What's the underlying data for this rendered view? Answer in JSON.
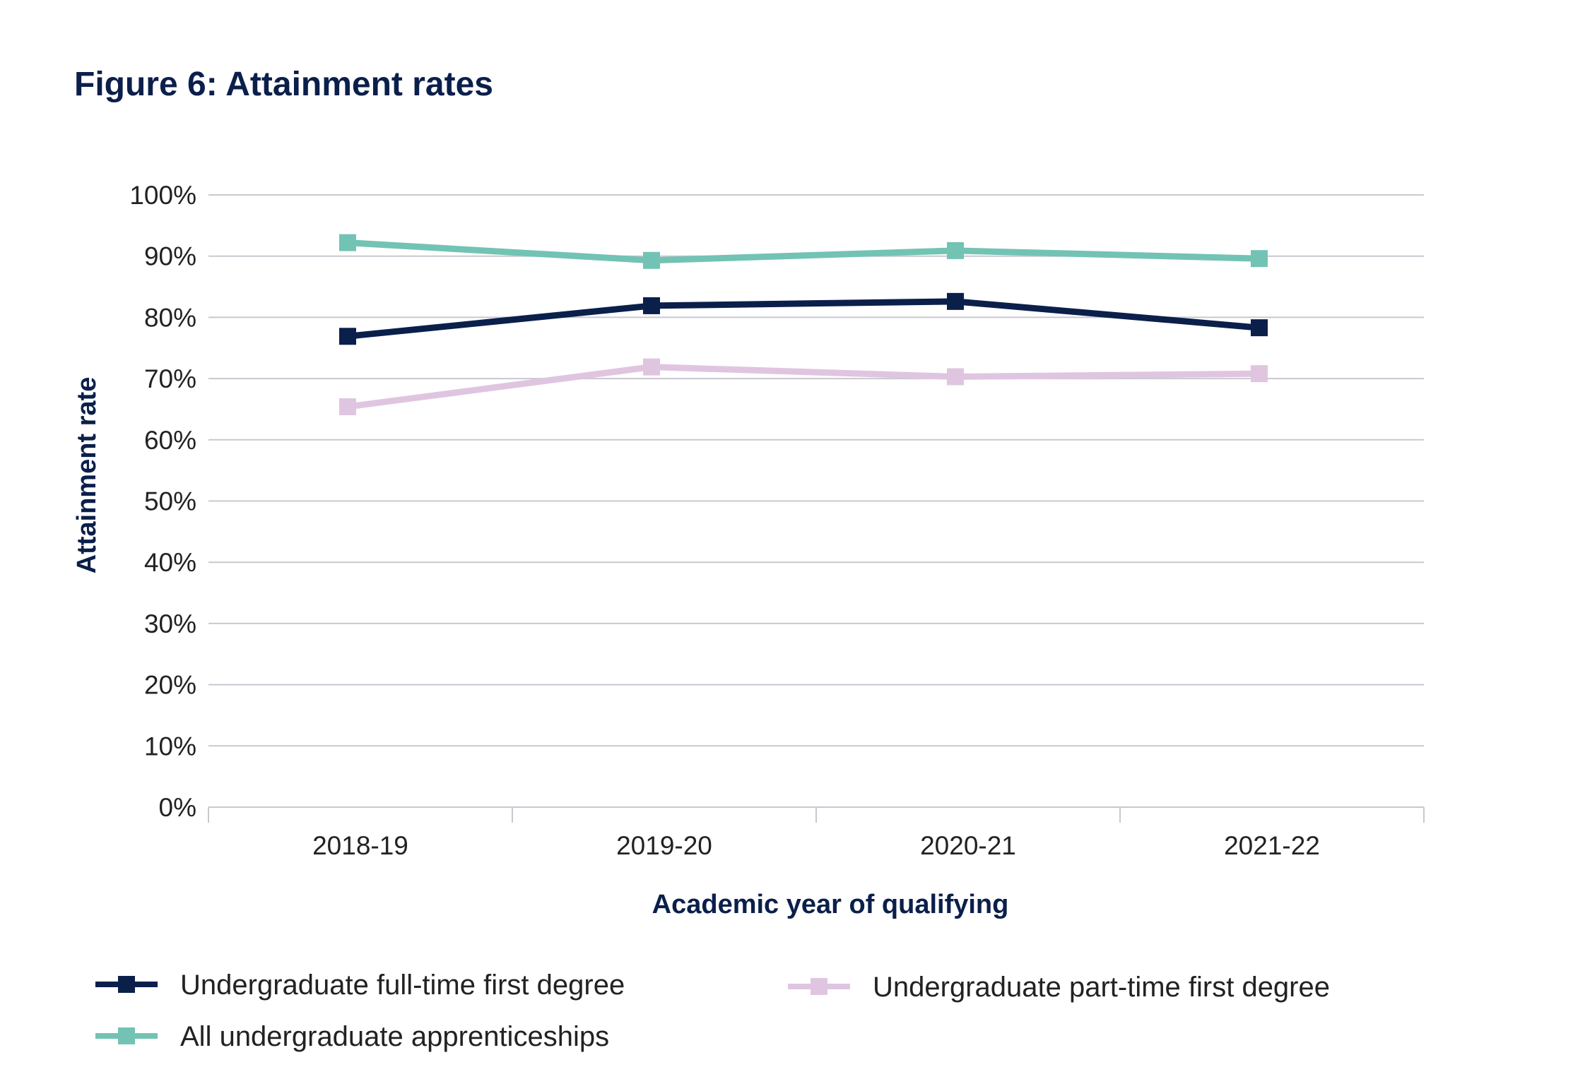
{
  "chart_data": {
    "type": "line",
    "title": "Figure 6: Attainment rates",
    "xlabel": "Academic year of qualifying",
    "ylabel": "Attainment rate",
    "categories": [
      "2018-19",
      "2019-20",
      "2020-21",
      "2021-22"
    ],
    "ylim": [
      0,
      100
    ],
    "yticks": [
      "0%",
      "10%",
      "20%",
      "30%",
      "40%",
      "50%",
      "60%",
      "70%",
      "80%",
      "90%",
      "100%"
    ],
    "grid": true,
    "legend_position": "bottom",
    "series": [
      {
        "name": "Undergraduate full-time first degree",
        "color": "#0b1f4b",
        "marker": "square",
        "values": [
          76.9,
          81.9,
          82.6,
          78.3
        ]
      },
      {
        "name": "All undergraduate apprenticeships",
        "color": "#72c3b4",
        "marker": "square",
        "values": [
          92.2,
          89.3,
          90.9,
          89.6
        ]
      },
      {
        "name": "Undergraduate part-time first degree",
        "color": "#e0c5e0",
        "marker": "square",
        "values": [
          65.4,
          71.9,
          70.3,
          70.8
        ]
      }
    ]
  }
}
